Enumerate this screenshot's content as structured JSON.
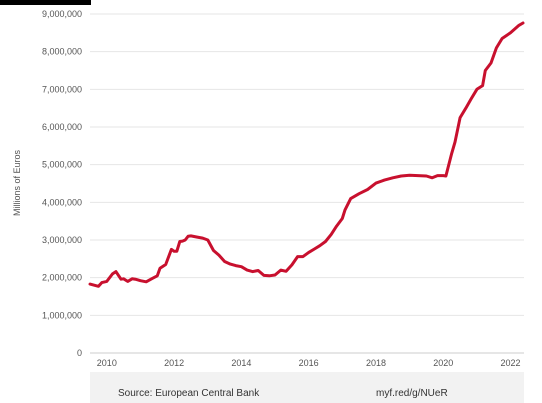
{
  "colors": {
    "line": "#c8102e",
    "grid": "#e6e6e6",
    "footer_bg": "#f2f2f2",
    "text": "#555555"
  },
  "footer": {
    "source": "Source: European Central Bank",
    "link": "myf.red/g/NUeR"
  },
  "chart_data": {
    "type": "line",
    "title": "",
    "xlabel": "",
    "ylabel": "Millions of Euros",
    "xlim": [
      2009.5,
      2022.4
    ],
    "ylim": [
      0,
      9000000
    ],
    "yticks": [
      0,
      1000000,
      2000000,
      3000000,
      4000000,
      5000000,
      6000000,
      7000000,
      8000000,
      9000000
    ],
    "ytick_labels": [
      "0",
      "1,000,000",
      "2,000,000",
      "3,000,000",
      "4,000,000",
      "5,000,000",
      "6,000,000",
      "7,000,000",
      "8,000,000",
      "9,000,000"
    ],
    "xticks": [
      2010,
      2012,
      2014,
      2016,
      2018,
      2020,
      2022
    ],
    "xtick_labels": [
      "2010",
      "2012",
      "2014",
      "2016",
      "2018",
      "2020",
      "2022"
    ],
    "grid": "horizontal",
    "series": [
      {
        "x": [
          2009.5,
          2009.75,
          2009.85,
          2010.0,
          2010.17,
          2010.27,
          2010.42,
          2010.5,
          2010.62,
          2010.75,
          2010.85,
          2011.0,
          2011.17,
          2011.33,
          2011.5,
          2011.58,
          2011.75,
          2011.92,
          2012.0,
          2012.08,
          2012.17,
          2012.25,
          2012.33,
          2012.42,
          2012.5,
          2012.67,
          2012.85,
          2013.0,
          2013.17,
          2013.33,
          2013.5,
          2013.67,
          2013.83,
          2014.0,
          2014.17,
          2014.33,
          2014.5,
          2014.67,
          2014.83,
          2015.0,
          2015.17,
          2015.33,
          2015.5,
          2015.67,
          2015.83,
          2016.0,
          2016.17,
          2016.33,
          2016.5,
          2016.67,
          2016.83,
          2017.0,
          2017.08,
          2017.25,
          2017.5,
          2017.75,
          2018.0,
          2018.25,
          2018.5,
          2018.75,
          2019.0,
          2019.25,
          2019.5,
          2019.67,
          2019.83,
          2020.0,
          2020.08,
          2020.25,
          2020.35,
          2020.5,
          2020.67,
          2020.83,
          2021.0,
          2021.17,
          2021.25,
          2021.42,
          2021.58,
          2021.75,
          2022.0,
          2022.25,
          2022.37
        ],
        "y": [
          1830000,
          1770000,
          1870000,
          1900000,
          2100000,
          2160000,
          1960000,
          1970000,
          1900000,
          1970000,
          1960000,
          1920000,
          1890000,
          1970000,
          2050000,
          2250000,
          2350000,
          2750000,
          2700000,
          2700000,
          2960000,
          2970000,
          3000000,
          3100000,
          3110000,
          3080000,
          3050000,
          3000000,
          2720000,
          2600000,
          2430000,
          2360000,
          2320000,
          2290000,
          2200000,
          2160000,
          2190000,
          2060000,
          2050000,
          2070000,
          2200000,
          2170000,
          2340000,
          2560000,
          2560000,
          2670000,
          2760000,
          2850000,
          2960000,
          3150000,
          3370000,
          3570000,
          3800000,
          4100000,
          4230000,
          4340000,
          4510000,
          4590000,
          4650000,
          4700000,
          4720000,
          4710000,
          4700000,
          4650000,
          4710000,
          4710000,
          4700000,
          5300000,
          5600000,
          6250000,
          6500000,
          6750000,
          7000000,
          7100000,
          7500000,
          7700000,
          8100000,
          8350000,
          8500000,
          8700000,
          8760000
        ]
      }
    ]
  }
}
